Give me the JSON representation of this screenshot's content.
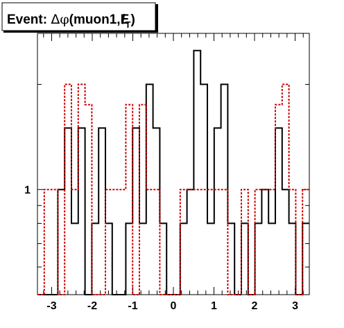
{
  "chart_data": {
    "type": "step-histogram",
    "title": {
      "prefix": "Event: ",
      "delta": "Δ",
      "phi": "φ",
      "open": "(muon1,",
      "met": "E",
      "slash": "/",
      "sub": "T",
      "close": ")"
    },
    "yscale": "log",
    "xlim": [
      -3.35,
      3.35
    ],
    "ylim": [
      0.5,
      2.8
    ],
    "xticks": [
      -3,
      -2,
      -1,
      0,
      1,
      2,
      3
    ],
    "xtick_labels": [
      "-3",
      "-2",
      "-1",
      "0",
      "1",
      "2",
      "3"
    ],
    "yticks_labeled": [
      1
    ],
    "ytick_labels": [
      "1"
    ],
    "grid": false,
    "legend": "none",
    "bin_width": 0.1675,
    "series": [
      {
        "style": "solid",
        "color": "#000000",
        "x_edges": [
          -3.35,
          -3.183,
          -3.015,
          -2.848,
          -2.68,
          -2.513,
          -2.345,
          -2.178,
          -2.01,
          -1.843,
          -1.675,
          -1.508,
          -1.34,
          -1.173,
          -1.005,
          -0.838,
          -0.67,
          -0.503,
          -0.335,
          -0.168,
          0,
          0.168,
          0.335,
          0.503,
          0.67,
          0.838,
          1.005,
          1.173,
          1.34,
          1.508,
          1.675,
          1.843,
          2.01,
          2.178,
          2.345,
          2.513,
          2.68,
          2.848,
          3.015,
          3.183,
          3.35
        ],
        "values": [
          0.5,
          0.5,
          0.5,
          1,
          1.5,
          0.8,
          1.5,
          0.5,
          0.8,
          1.5,
          0.8,
          0.5,
          0.5,
          0.8,
          1.5,
          0.8,
          2,
          1.5,
          0.8,
          0.5,
          0.5,
          0.8,
          1,
          2.5,
          2,
          0.8,
          1.5,
          2,
          0.8,
          0.5,
          0.8,
          0.5,
          0.8,
          1,
          0.8,
          1.5,
          1,
          0.8,
          0.5,
          0.8
        ]
      },
      {
        "style": "dotted",
        "color": "#cc0000",
        "x_edges": [
          -3.35,
          -3.183,
          -3.015,
          -2.848,
          -2.68,
          -2.513,
          -2.345,
          -2.178,
          -2.01,
          -1.843,
          -1.675,
          -1.508,
          -1.34,
          -1.173,
          -1.005,
          -0.838,
          -0.67,
          -0.503,
          -0.335,
          -0.168,
          0,
          0.168,
          0.335,
          0.503,
          0.67,
          0.838,
          1.005,
          1.173,
          1.34,
          1.508,
          1.675,
          1.843,
          2.01,
          2.178,
          2.345,
          2.513,
          2.68,
          2.848,
          3.015,
          3.183,
          3.35
        ],
        "values": [
          0.5,
          1,
          1,
          0.5,
          2,
          1,
          2,
          1.75,
          0.5,
          0.5,
          1,
          1,
          1,
          1.75,
          0.5,
          1.75,
          1,
          1,
          0.5,
          0.5,
          0.5,
          1,
          1,
          1,
          1,
          1,
          1,
          1,
          0.5,
          0.5,
          1,
          0.5,
          1,
          1,
          1,
          1.75,
          2,
          1,
          0.5,
          1
        ]
      }
    ]
  }
}
